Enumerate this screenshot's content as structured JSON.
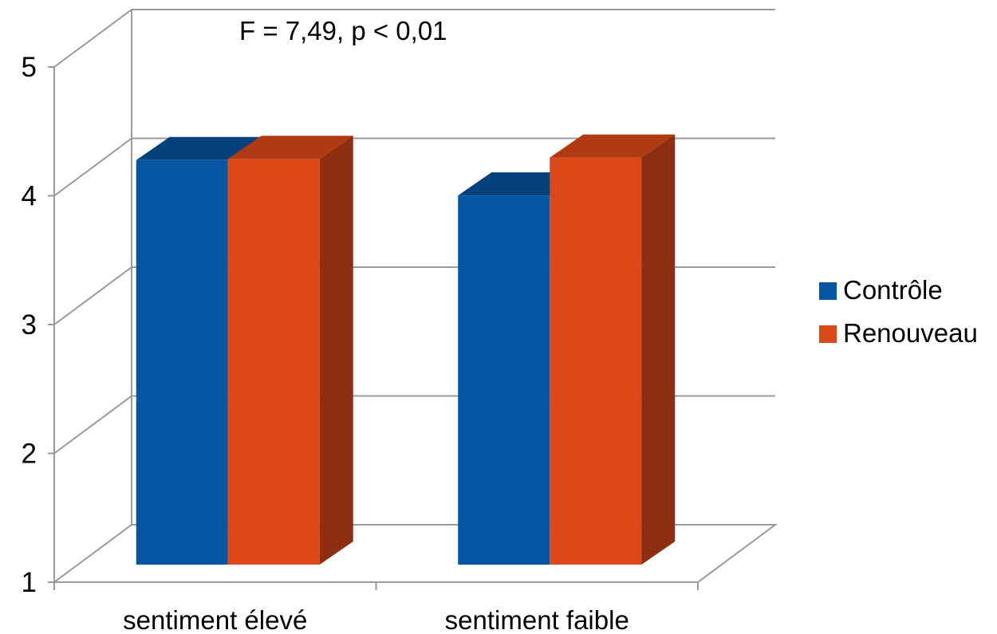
{
  "chart_data": {
    "type": "bar",
    "title": "",
    "xlabel": "",
    "ylabel": "",
    "annotation": "F = 7,49, p < 0,01",
    "categories": [
      "sentiment élevé",
      "sentiment faible"
    ],
    "series": [
      {
        "name": "Contrôle",
        "values": [
          4.2,
          3.92
        ],
        "color": "#0455A3",
        "top_color": "#05417A"
      },
      {
        "name": "Renouveau",
        "values": [
          4.21,
          4.22
        ],
        "color": "#DC4817",
        "top_color": "#B03A12",
        "side_color": "#8E2E10"
      }
    ],
    "ylim": [
      1,
      5
    ],
    "yticks": [
      "1",
      "2",
      "3",
      "4",
      "5"
    ],
    "grid": true,
    "legend_position": "right",
    "three_d": true
  }
}
